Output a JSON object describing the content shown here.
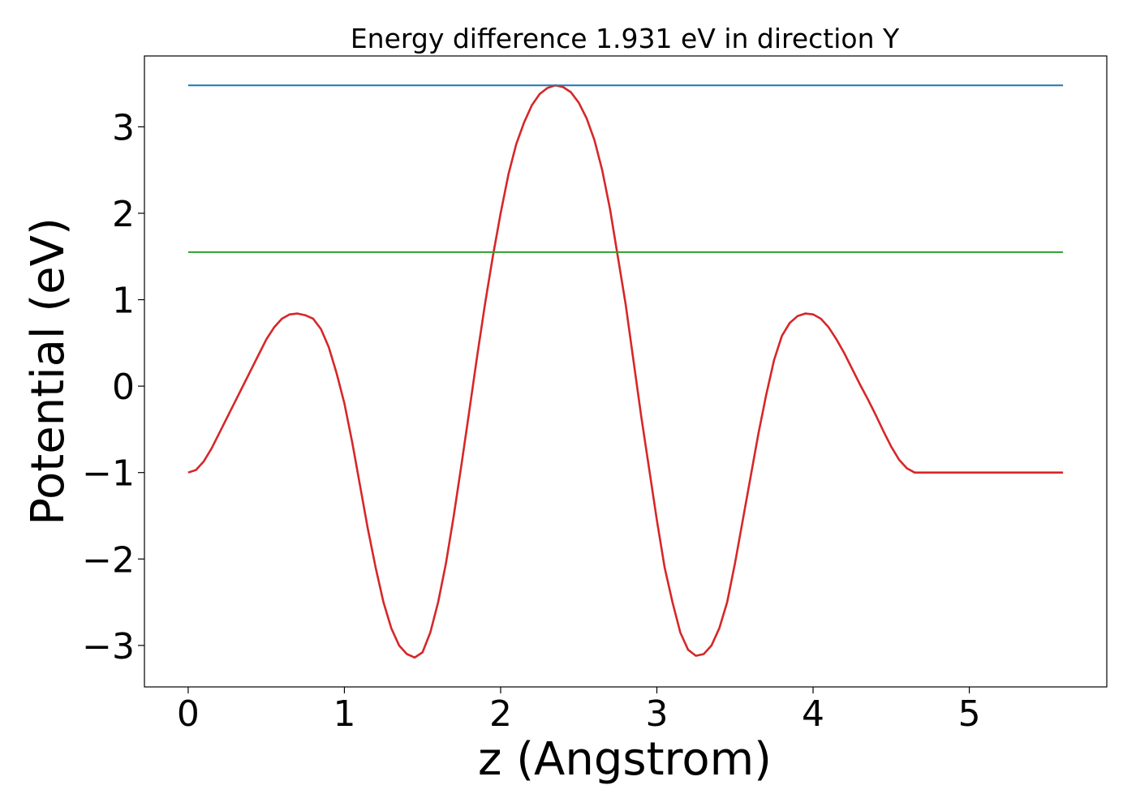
{
  "chart_data": {
    "type": "line",
    "title": "Energy difference 1.931 eV in direction Y",
    "xlabel": "z (Angstrom)",
    "ylabel": "Potential (eV)",
    "xlim": [
      -0.28,
      5.88
    ],
    "ylim": [
      -3.48,
      3.82
    ],
    "xticks": [
      0,
      1,
      2,
      3,
      4,
      5
    ],
    "xtick_labels": [
      "0",
      "1",
      "2",
      "3",
      "4",
      "5"
    ],
    "yticks": [
      -3,
      -2,
      -1,
      0,
      1,
      2,
      3
    ],
    "ytick_labels": [
      "−3",
      "−2",
      "−1",
      "0",
      "1",
      "2",
      "3"
    ],
    "grid": false,
    "series": [
      {
        "color": "#d62728",
        "x": [
          0.0,
          0.05,
          0.1,
          0.15,
          0.2,
          0.25,
          0.3,
          0.35,
          0.4,
          0.45,
          0.5,
          0.55,
          0.6,
          0.65,
          0.7,
          0.75,
          0.8,
          0.85,
          0.9,
          0.95,
          1.0,
          1.05,
          1.1,
          1.15,
          1.2,
          1.25,
          1.3,
          1.35,
          1.4,
          1.45,
          1.5,
          1.55,
          1.6,
          1.65,
          1.7,
          1.75,
          1.8,
          1.85,
          1.9,
          1.95,
          2.0,
          2.05,
          2.1,
          2.15,
          2.2,
          2.25,
          2.3,
          2.35,
          2.4,
          2.45,
          2.5,
          2.55,
          2.6,
          2.65,
          2.7,
          2.75,
          2.8,
          2.85,
          2.9,
          2.95,
          3.0,
          3.05,
          3.1,
          3.15,
          3.2,
          3.25,
          3.3,
          3.35,
          3.4,
          3.45,
          3.5,
          3.55,
          3.6,
          3.65,
          3.7,
          3.75,
          3.8,
          3.85,
          3.9,
          3.95,
          4.0,
          4.05,
          4.1,
          4.15,
          4.2,
          4.25,
          4.3,
          4.35,
          4.4,
          4.45,
          4.5,
          4.55,
          4.6,
          4.65,
          4.7,
          4.75,
          4.8,
          4.85,
          4.9,
          4.95,
          5.0,
          5.05,
          5.1,
          5.15,
          5.2,
          5.25,
          5.3,
          5.35,
          5.4,
          5.45,
          5.5,
          5.55,
          5.6
        ],
        "values": [
          -1.0,
          -0.97,
          -0.87,
          -0.72,
          -0.54,
          -0.36,
          -0.18,
          0.0,
          0.18,
          0.36,
          0.54,
          0.68,
          0.78,
          0.83,
          0.84,
          0.82,
          0.78,
          0.66,
          0.45,
          0.15,
          -0.2,
          -0.65,
          -1.15,
          -1.65,
          -2.1,
          -2.5,
          -2.8,
          -3.0,
          -3.1,
          -3.14,
          -3.08,
          -2.85,
          -2.5,
          -2.05,
          -1.5,
          -0.9,
          -0.28,
          0.35,
          0.95,
          1.5,
          2.0,
          2.45,
          2.8,
          3.05,
          3.25,
          3.38,
          3.45,
          3.48,
          3.46,
          3.4,
          3.28,
          3.1,
          2.85,
          2.5,
          2.05,
          1.5,
          0.95,
          0.3,
          -0.35,
          -0.95,
          -1.55,
          -2.1,
          -2.5,
          -2.85,
          -3.05,
          -3.12,
          -3.1,
          -3.0,
          -2.8,
          -2.5,
          -2.05,
          -1.55,
          -1.05,
          -0.55,
          -0.1,
          0.3,
          0.58,
          0.73,
          0.81,
          0.84,
          0.83,
          0.78,
          0.68,
          0.54,
          0.38,
          0.2,
          0.02,
          -0.15,
          -0.33,
          -0.52,
          -0.7,
          -0.85,
          -0.95,
          -1.0,
          -1.0,
          -1.0,
          -1.0,
          -1.0,
          -1.0,
          -1.0,
          -1.0,
          -1.0,
          -1.0,
          -1.0,
          -1.0,
          -1.0,
          -1.0,
          -1.0,
          -1.0,
          -1.0,
          -1.0,
          -1.0,
          -1.0
        ]
      },
      {
        "color": "#1f77b4",
        "x": [
          0.0,
          5.6
        ],
        "values": [
          3.48,
          3.48
        ]
      },
      {
        "color": "#2ca02c",
        "x": [
          0.0,
          5.6
        ],
        "values": [
          1.55,
          1.55
        ]
      }
    ]
  }
}
